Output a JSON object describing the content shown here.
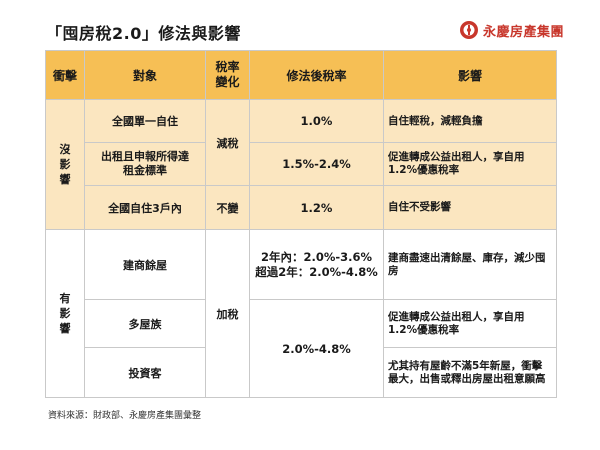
{
  "title": "「囤房稅2.0」修法與影響",
  "logo": {
    "text": "永慶房產集團",
    "icon": "yungching-logo-icon",
    "color": "#c8372c"
  },
  "colors": {
    "header": "#f6bf55",
    "section_no_impact": "#fbe6c0",
    "section_impact": "#ffffff",
    "border": "#c9c9c9"
  },
  "headers": {
    "impact_level": "衝擊",
    "target": "對象",
    "rate_change": "稅率變化",
    "new_rate": "修法後稅率",
    "effect": "影響"
  },
  "no_impact": {
    "label": "沒影響",
    "rows": [
      {
        "target": "全國單一自住",
        "new_rate": "1.0%",
        "effect": "自住輕稅，減輕負擔"
      },
      {
        "target": "出租且申報所得達租金標準",
        "new_rate": "1.5%-2.4%",
        "effect": "促進轉成公益出租人，享自用1.2%優惠稅率"
      },
      {
        "target": "全國自住3戶內",
        "rate_change": "不變",
        "new_rate": "1.2%",
        "effect": "自住不受影響"
      }
    ],
    "shared_rate_change": "減稅"
  },
  "impact": {
    "label": "有影響",
    "shared_rate_change": "加稅",
    "rows": [
      {
        "target": "建商餘屋",
        "new_rate_line1": "2年內：2.0%-3.6%",
        "new_rate_line2": "超過2年：2.0%-4.8%",
        "effect": "建商盡速出清餘屋、庫存，減少囤房"
      },
      {
        "target": "多屋族",
        "effect": "促進轉成公益出租人，享自用1.2%優惠稅率"
      },
      {
        "target": "投資客",
        "effect": "尤其持有屋齡不滿5年新屋，衝擊最大，出售或釋出房屋出租意願高"
      }
    ],
    "shared_new_rate": "2.0%-4.8%"
  },
  "source": "資料來源：財政部、永慶房產集團彙整"
}
